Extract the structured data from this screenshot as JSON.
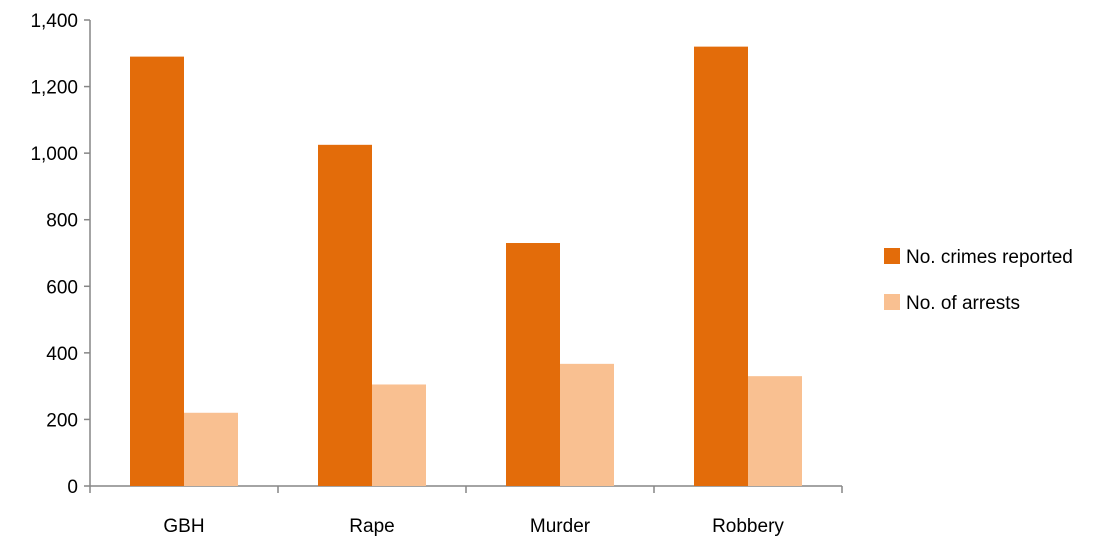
{
  "chart_data": {
    "type": "bar",
    "categories": [
      "GBH",
      "Rape",
      "Murder",
      "Robbery"
    ],
    "series": [
      {
        "name": "No. crimes reported",
        "color": "#E36C0A",
        "values": [
          1290,
          1025,
          730,
          1320
        ]
      },
      {
        "name": "No. of arrests",
        "color": "#F9C091",
        "values": [
          220,
          305,
          367,
          330
        ]
      }
    ],
    "ylim": [
      0,
      1400
    ],
    "yticks": [
      0,
      200,
      400,
      600,
      800,
      1000,
      1200,
      1400
    ],
    "ytick_labels": [
      "0",
      "200",
      "400",
      "600",
      "800",
      "1,000",
      "1,200",
      "1,400"
    ],
    "grid": false,
    "legend_position": "right"
  }
}
